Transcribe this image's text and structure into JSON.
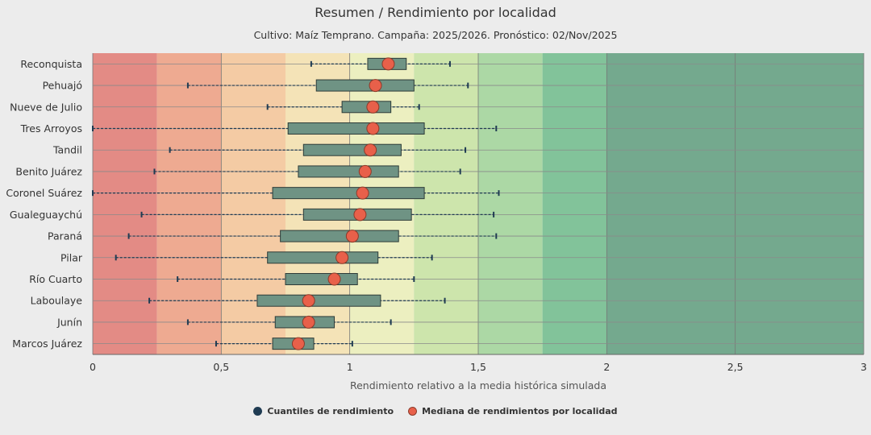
{
  "chart_data": {
    "type": "boxplot",
    "title": "Resumen / Rendimiento por localidad",
    "subtitle": "Cultivo: Maíz Temprano. Campaña: 2025/2026. Pronóstico: 02/Nov/2025",
    "xlabel": "Rendimiento relativo a la media histórica simulada",
    "xlim": [
      0,
      3
    ],
    "xticks": [
      {
        "value": 0,
        "label": "0"
      },
      {
        "value": 0.5,
        "label": "0,5"
      },
      {
        "value": 1,
        "label": "1"
      },
      {
        "value": 1.5,
        "label": "1,5"
      },
      {
        "value": 2,
        "label": "2"
      },
      {
        "value": 2.5,
        "label": "2,5"
      },
      {
        "value": 3,
        "label": "3"
      }
    ],
    "bands": [
      {
        "from": 0,
        "to": 0.25,
        "color": "#e38b85"
      },
      {
        "from": 0.25,
        "to": 0.5,
        "color": "#eeaa91"
      },
      {
        "from": 0.5,
        "to": 0.75,
        "color": "#f4cba4"
      },
      {
        "from": 0.75,
        "to": 1.0,
        "color": "#f4e3b7"
      },
      {
        "from": 1.0,
        "to": 1.25,
        "color": "#ecefc0"
      },
      {
        "from": 1.25,
        "to": 1.5,
        "color": "#cde5ac"
      },
      {
        "from": 1.5,
        "to": 1.75,
        "color": "#acd8a5"
      },
      {
        "from": 1.75,
        "to": 2.0,
        "color": "#82c39a"
      },
      {
        "from": 2.0,
        "to": 3.0,
        "color": "#74a98e"
      }
    ],
    "legend": [
      {
        "label": "Cuantiles de rendimiento",
        "marker": "quantile"
      },
      {
        "label": "Mediana de rendimientos por localidad",
        "marker": "median"
      }
    ],
    "legend_position": "bottom",
    "colors": {
      "box": "#6f9384",
      "median": "#e8604a",
      "whisker": "#1f3b52"
    },
    "series": [
      {
        "name": "Reconquista",
        "min": 0.85,
        "q1": 1.07,
        "median": 1.15,
        "q3": 1.22,
        "max": 1.39
      },
      {
        "name": "Pehuajó",
        "min": 0.37,
        "q1": 0.87,
        "median": 1.1,
        "q3": 1.25,
        "max": 1.46
      },
      {
        "name": "Nueve de Julio",
        "min": 0.68,
        "q1": 0.97,
        "median": 1.09,
        "q3": 1.16,
        "max": 1.27
      },
      {
        "name": "Tres Arroyos",
        "min": 0.0,
        "q1": 0.76,
        "median": 1.09,
        "q3": 1.29,
        "max": 1.57
      },
      {
        "name": "Tandil",
        "min": 0.3,
        "q1": 0.82,
        "median": 1.08,
        "q3": 1.2,
        "max": 1.45
      },
      {
        "name": "Benito Juárez",
        "min": 0.24,
        "q1": 0.8,
        "median": 1.06,
        "q3": 1.19,
        "max": 1.43
      },
      {
        "name": "Coronel Suárez",
        "min": 0.0,
        "q1": 0.7,
        "median": 1.05,
        "q3": 1.29,
        "max": 1.58
      },
      {
        "name": "Gualeguaychú",
        "min": 0.19,
        "q1": 0.82,
        "median": 1.04,
        "q3": 1.24,
        "max": 1.56
      },
      {
        "name": "Paraná",
        "min": 0.14,
        "q1": 0.73,
        "median": 1.01,
        "q3": 1.19,
        "max": 1.57
      },
      {
        "name": "Pilar",
        "min": 0.09,
        "q1": 0.68,
        "median": 0.97,
        "q3": 1.11,
        "max": 1.32
      },
      {
        "name": "Río Cuarto",
        "min": 0.33,
        "q1": 0.75,
        "median": 0.94,
        "q3": 1.03,
        "max": 1.25
      },
      {
        "name": "Laboulaye",
        "min": 0.22,
        "q1": 0.64,
        "median": 0.84,
        "q3": 1.12,
        "max": 1.37
      },
      {
        "name": "Junín",
        "min": 0.37,
        "q1": 0.71,
        "median": 0.84,
        "q3": 0.94,
        "max": 1.16
      },
      {
        "name": "Marcos Juárez",
        "min": 0.48,
        "q1": 0.7,
        "median": 0.8,
        "q3": 0.86,
        "max": 1.01
      }
    ]
  }
}
